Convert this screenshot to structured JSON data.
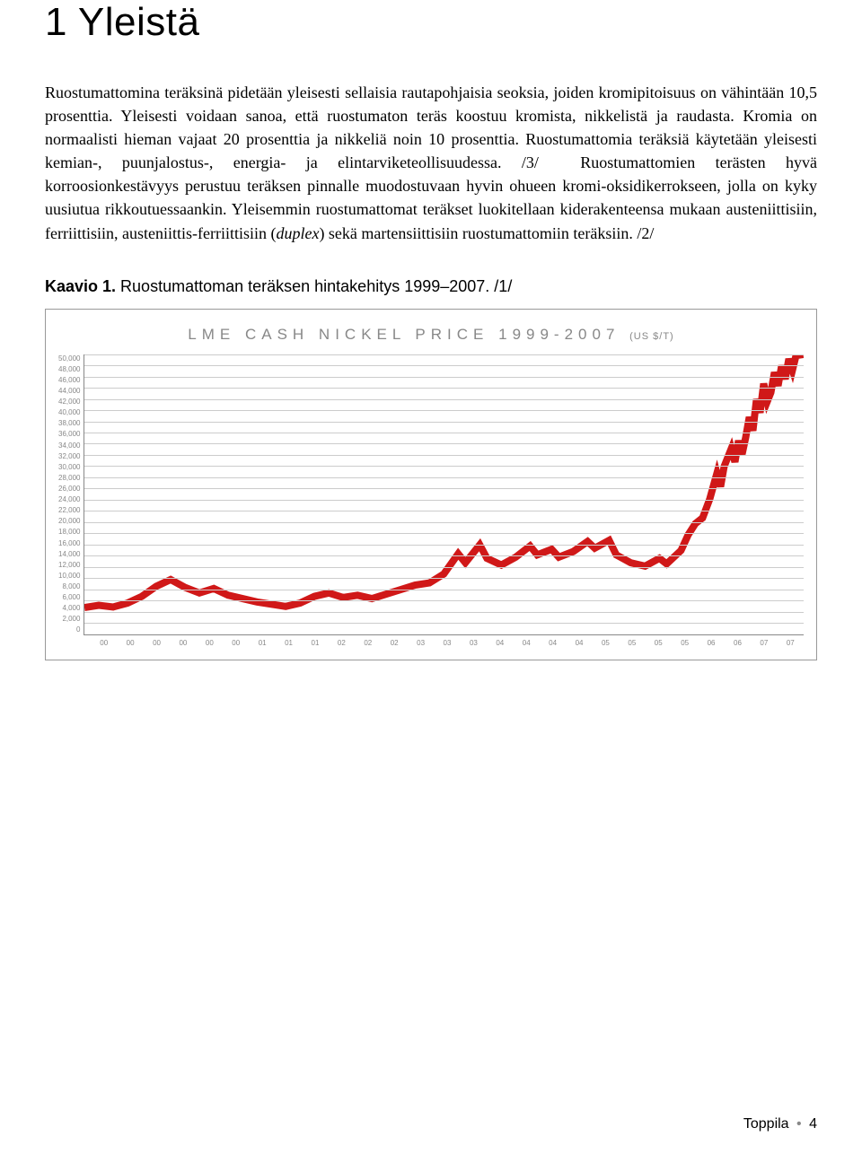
{
  "heading": "1 Yleistä",
  "paragraph_html": "Ruostumattomina teräksinä pidetään yleisesti sellaisia rautapohjaisia seoksia, joiden kromipitoisuus on vähintään 10,5 prosenttia. Yleisesti voidaan sanoa, että ruostumaton teräs koostuu kromista, nikkelistä ja raudasta. Kromia on normaalisti hieman vajaat 20 prosenttia ja nikkeliä noin 10 prosenttia. Ruostumattomia teräksiä käytetään yleisesti kemian-, puunjalostus-, energia- ja elintarviketeollisuudessa. /3/\n<span class=\"indent\"></span>Ruostumattomien terästen hyvä korroosionkestävyys perustuu teräksen pinnalle muodostuvaan hyvin ohueen kromi-oksidikerrokseen, jolla on kyky uusiutua rikkoutuessaankin. Yleisemmin ruostumattomat teräkset luokitellaan kiderakenteensa mukaan austeniittisiin, ferriittisiin, austeniittis-ferriittisiin (<i>duplex</i>) sekä martensiittisiin ruostumattomiin teräksiin. /2/",
  "caption_strong": "Kaavio 1.",
  "caption_rest": " Ruostumattoman teräksen hintakehitys 1999–2007. /1/",
  "chart": {
    "type": "line",
    "title_main": "LME CASH NICKEL PRICE 1999-2007",
    "title_unit": "(US $/T)",
    "title_color": "#888888",
    "title_fontsize": 17,
    "title_letterspacing": 6,
    "y_ticks": [
      "50,000",
      "48,000",
      "46,000",
      "44,000",
      "42,000",
      "40,000",
      "38,000",
      "36,000",
      "34,000",
      "32,000",
      "30,000",
      "28,000",
      "26,000",
      "24,000",
      "22,000",
      "20,000",
      "18,000",
      "16,000",
      "14,000",
      "12,000",
      "10,000",
      "8,000",
      "6,000",
      "4,000",
      "2,000",
      "0"
    ],
    "y_max": 50000,
    "y_min": 0,
    "x_ticks": [
      "00",
      "00",
      "00",
      "00",
      "00",
      "00",
      "01",
      "01",
      "01",
      "02",
      "02",
      "02",
      "03",
      "03",
      "03",
      "04",
      "04",
      "04",
      "04",
      "05",
      "05",
      "05",
      "05",
      "06",
      "06",
      "07",
      "07"
    ],
    "grid_color": "#cccccc",
    "axis_color": "#888888",
    "background_color": "#ffffff",
    "series": {
      "color": "#d01818",
      "width": 2,
      "points": [
        [
          0.0,
          4800
        ],
        [
          0.02,
          5200
        ],
        [
          0.04,
          4900
        ],
        [
          0.06,
          5600
        ],
        [
          0.08,
          6800
        ],
        [
          0.1,
          8600
        ],
        [
          0.12,
          9800
        ],
        [
          0.14,
          8400
        ],
        [
          0.16,
          7400
        ],
        [
          0.18,
          8200
        ],
        [
          0.2,
          7000
        ],
        [
          0.22,
          6400
        ],
        [
          0.24,
          5800
        ],
        [
          0.26,
          5400
        ],
        [
          0.28,
          5000
        ],
        [
          0.3,
          5600
        ],
        [
          0.32,
          6800
        ],
        [
          0.34,
          7400
        ],
        [
          0.36,
          6600
        ],
        [
          0.38,
          7000
        ],
        [
          0.4,
          6400
        ],
        [
          0.42,
          7200
        ],
        [
          0.44,
          8000
        ],
        [
          0.46,
          8800
        ],
        [
          0.48,
          9200
        ],
        [
          0.5,
          10800
        ],
        [
          0.52,
          14400
        ],
        [
          0.53,
          12800
        ],
        [
          0.55,
          16000
        ],
        [
          0.56,
          13600
        ],
        [
          0.58,
          12400
        ],
        [
          0.6,
          13800
        ],
        [
          0.62,
          15800
        ],
        [
          0.63,
          14200
        ],
        [
          0.65,
          15200
        ],
        [
          0.66,
          13800
        ],
        [
          0.68,
          14800
        ],
        [
          0.7,
          16600
        ],
        [
          0.71,
          15400
        ],
        [
          0.73,
          16800
        ],
        [
          0.74,
          14200
        ],
        [
          0.76,
          12800
        ],
        [
          0.78,
          12200
        ],
        [
          0.8,
          13600
        ],
        [
          0.81,
          12600
        ],
        [
          0.83,
          15000
        ],
        [
          0.84,
          17800
        ],
        [
          0.85,
          19800
        ],
        [
          0.86,
          20800
        ],
        [
          0.87,
          24200
        ],
        [
          0.88,
          28800
        ],
        [
          0.885,
          26400
        ],
        [
          0.89,
          30000
        ],
        [
          0.9,
          33200
        ],
        [
          0.905,
          30800
        ],
        [
          0.91,
          34600
        ],
        [
          0.915,
          32200
        ],
        [
          0.92,
          35200
        ],
        [
          0.925,
          38800
        ],
        [
          0.93,
          36400
        ],
        [
          0.935,
          42000
        ],
        [
          0.94,
          39600
        ],
        [
          0.945,
          44800
        ],
        [
          0.95,
          41600
        ],
        [
          0.955,
          43200
        ],
        [
          0.96,
          46800
        ],
        [
          0.965,
          44400
        ],
        [
          0.97,
          48000
        ],
        [
          0.975,
          45600
        ],
        [
          0.98,
          49200
        ],
        [
          0.985,
          47200
        ],
        [
          0.99,
          49800
        ],
        [
          1.0,
          50000
        ]
      ]
    }
  },
  "footer_author": "Toppila",
  "footer_page": "4"
}
